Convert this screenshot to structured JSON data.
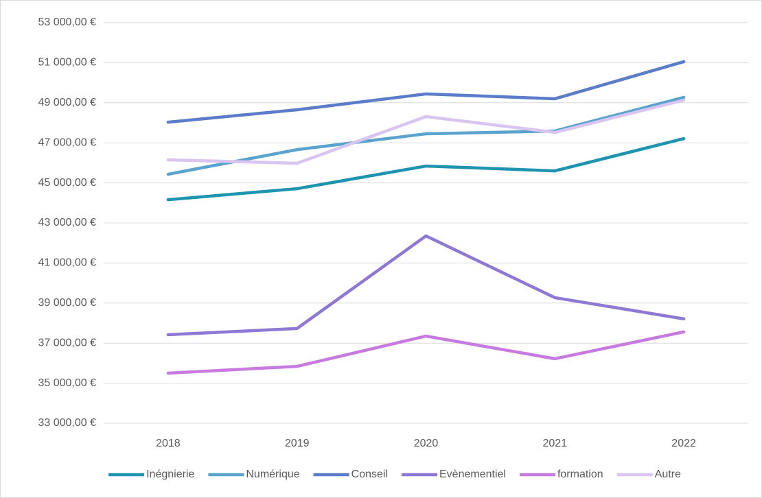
{
  "chart_data": {
    "type": "line",
    "categories": [
      "2018",
      "2019",
      "2020",
      "2021",
      "2022"
    ],
    "series": [
      {
        "name": "Inégnierie",
        "color": "#1f94b0",
        "values": [
          44160,
          44710,
          45840,
          45600,
          47210
        ]
      },
      {
        "name": "Numérique",
        "color": "#5ba3cf",
        "values": [
          45430,
          46660,
          47450,
          47590,
          49270
        ]
      },
      {
        "name": "Conseil",
        "color": "#5b7cc8",
        "values": [
          48030,
          48650,
          49440,
          49200,
          51050
        ]
      },
      {
        "name": "Evènementiel",
        "color": "#8e78d4",
        "values": [
          37420,
          37730,
          42350,
          39270,
          38210
        ]
      },
      {
        "name": "formation",
        "color": "#c77ae0",
        "values": [
          35500,
          35840,
          37350,
          36220,
          37560
        ]
      },
      {
        "name": "Autre",
        "color": "#d9c5f0",
        "values": [
          46150,
          45980,
          48310,
          47520,
          49130
        ]
      }
    ],
    "ylim": [
      33000,
      53000
    ],
    "yticks": [
      {
        "value": 33000,
        "label": "33 000,00 €"
      },
      {
        "value": 35000,
        "label": "35 000,00 €"
      },
      {
        "value": 37000,
        "label": "37 000,00 €"
      },
      {
        "value": 39000,
        "label": "39 000,00 €"
      },
      {
        "value": 41000,
        "label": "41 000,00 €"
      },
      {
        "value": 43000,
        "label": "43 000,00 €"
      },
      {
        "value": 45000,
        "label": "45 000,00 €"
      },
      {
        "value": 47000,
        "label": "47 000,00 €"
      },
      {
        "value": 49000,
        "label": "49 000,00 €"
      },
      {
        "value": 51000,
        "label": "51 000,00 €"
      },
      {
        "value": 53000,
        "label": "53 000,00 €"
      }
    ],
    "grid": true,
    "legend": "bottom"
  }
}
